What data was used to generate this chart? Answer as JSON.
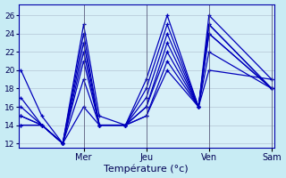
{
  "xlabel": "Température (°c)",
  "background_color": "#c8ecf4",
  "plot_bg_color": "#d8f0f8",
  "line_color": "#0000bb",
  "ylim": [
    11.5,
    27.2
  ],
  "xlim": [
    -1,
    97
  ],
  "yticks": [
    12,
    14,
    16,
    18,
    20,
    22,
    24,
    26
  ],
  "xtick_positions": [
    24,
    48,
    72,
    96
  ],
  "xtick_labels": [
    "Mer",
    "Jeu",
    "Ven",
    "Sam"
  ],
  "series": [
    [
      20,
      15,
      12,
      25,
      15,
      14,
      19,
      26,
      16,
      26,
      19
    ],
    [
      17,
      14,
      12,
      24,
      14,
      14,
      18,
      25,
      16,
      25,
      18
    ],
    [
      16,
      14,
      12,
      23,
      14,
      14,
      17,
      24,
      16,
      25,
      18
    ],
    [
      15,
      14,
      12,
      22,
      14,
      14,
      16,
      23,
      16,
      24,
      18
    ],
    [
      15,
      14,
      12,
      21,
      14,
      14,
      16,
      22,
      16,
      24,
      18
    ],
    [
      14,
      14,
      12,
      19,
      14,
      14,
      15,
      21,
      16,
      22,
      18
    ],
    [
      14,
      14,
      12,
      16,
      14,
      14,
      15,
      20,
      16,
      20,
      19
    ]
  ],
  "x_coords": [
    0,
    8,
    16,
    24,
    30,
    40,
    48,
    56,
    68,
    72,
    96
  ]
}
